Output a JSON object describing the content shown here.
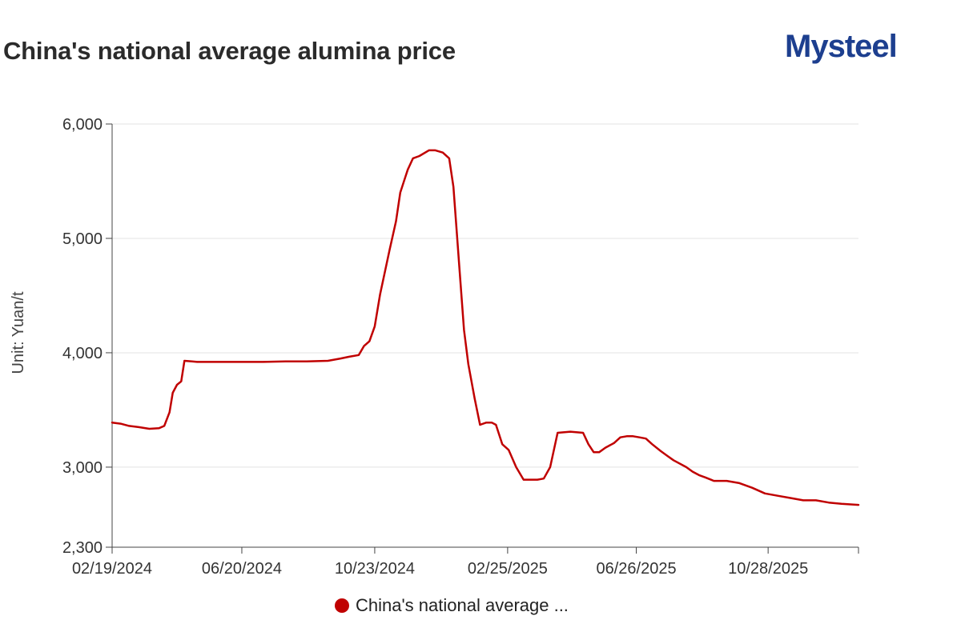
{
  "header": {
    "title": "China's national average alumina price",
    "brand": "Mysteel"
  },
  "chart_data": {
    "type": "line",
    "title": "China's national average alumina price",
    "xlabel": "",
    "ylabel": "Unit: Yuan/t",
    "ylim": [
      2300,
      6000
    ],
    "yticks": [
      2300,
      3000,
      4000,
      5000,
      6000
    ],
    "ytick_labels": [
      "2,300",
      "3,000",
      "4,000",
      "5,000",
      "6,000"
    ],
    "x_range": [
      "2024-02-19",
      "2026-01-21"
    ],
    "xtick_labels": [
      "02/19/2024",
      "06/20/2024",
      "10/23/2024",
      "02/25/2025",
      "06/26/2025",
      "10/28/2025"
    ],
    "grid": true,
    "legend_position": "bottom",
    "series": [
      {
        "name": "China's national average ...",
        "color": "#c00000",
        "x": [
          "2024-02-19",
          "2024-02-27",
          "2024-03-06",
          "2024-03-15",
          "2024-03-25",
          "2024-04-03",
          "2024-04-08",
          "2024-04-13",
          "2024-04-16",
          "2024-04-20",
          "2024-04-24",
          "2024-04-27",
          "2024-05-04",
          "2024-05-09",
          "2024-05-29",
          "2024-06-20",
          "2024-07-10",
          "2024-07-31",
          "2024-08-20",
          "2024-09-09",
          "2024-09-21",
          "2024-09-29",
          "2024-10-08",
          "2024-10-13",
          "2024-10-18",
          "2024-10-23",
          "2024-10-28",
          "2024-11-06",
          "2024-11-12",
          "2024-11-16",
          "2024-11-23",
          "2024-11-28",
          "2024-12-04",
          "2024-12-13",
          "2024-12-19",
          "2024-12-26",
          "2025-01-01",
          "2025-01-05",
          "2025-01-11",
          "2025-01-15",
          "2025-01-19",
          "2025-01-25",
          "2025-01-30",
          "2025-02-05",
          "2025-02-10",
          "2025-02-14",
          "2025-02-20",
          "2025-02-26",
          "2025-03-05",
          "2025-03-12",
          "2025-03-19",
          "2025-03-25",
          "2025-03-31",
          "2025-04-06",
          "2025-04-13",
          "2025-04-25",
          "2025-05-07",
          "2025-05-12",
          "2025-05-17",
          "2025-05-22",
          "2025-05-28",
          "2025-06-05",
          "2025-06-11",
          "2025-06-17",
          "2025-06-23",
          "2025-06-29",
          "2025-07-05",
          "2025-07-11",
          "2025-07-19",
          "2025-07-25",
          "2025-07-31",
          "2025-08-12",
          "2025-08-18",
          "2025-08-24",
          "2025-08-30",
          "2025-09-07",
          "2025-09-19",
          "2025-10-01",
          "2025-10-13",
          "2025-10-25",
          "2025-11-06",
          "2025-11-18",
          "2025-11-30",
          "2025-12-12",
          "2025-12-24",
          "2026-01-05",
          "2026-01-21"
        ],
        "y": [
          3390,
          3380,
          3360,
          3350,
          3335,
          3340,
          3360,
          3480,
          3650,
          3720,
          3750,
          3930,
          3925,
          3920,
          3920,
          3920,
          3920,
          3925,
          3925,
          3930,
          3950,
          3965,
          3980,
          4060,
          4100,
          4230,
          4510,
          4900,
          5150,
          5400,
          5600,
          5700,
          5720,
          5770,
          5770,
          5750,
          5700,
          5450,
          4700,
          4200,
          3900,
          3600,
          3370,
          3390,
          3390,
          3370,
          3200,
          3150,
          3000,
          2890,
          2890,
          2890,
          2900,
          3000,
          3300,
          3310,
          3300,
          3200,
          3130,
          3130,
          3170,
          3210,
          3260,
          3270,
          3270,
          3260,
          3250,
          3200,
          3140,
          3100,
          3060,
          3000,
          2960,
          2930,
          2910,
          2880,
          2880,
          2860,
          2820,
          2770,
          2750,
          2730,
          2710,
          2710,
          2690,
          2680,
          2670
        ]
      }
    ]
  }
}
